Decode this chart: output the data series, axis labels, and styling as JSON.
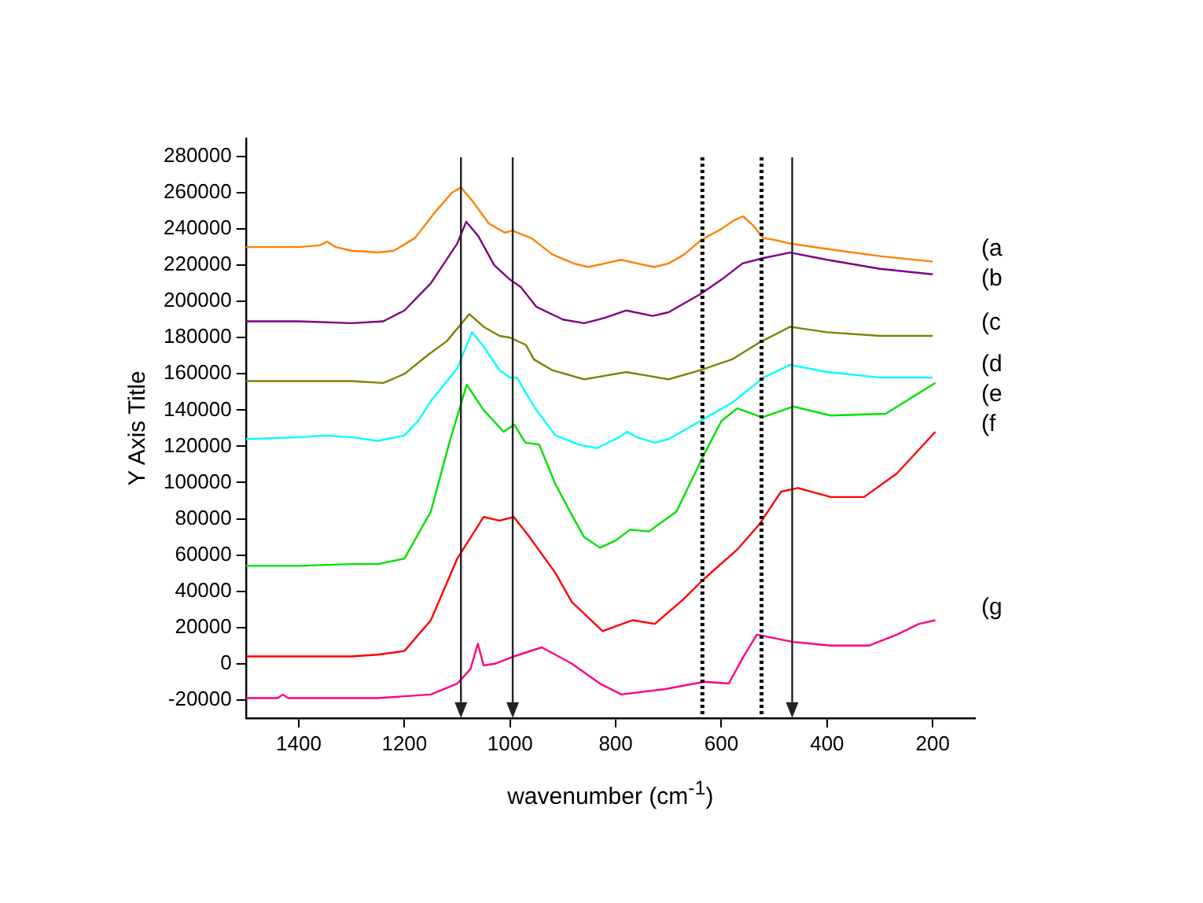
{
  "chart_data": {
    "type": "line",
    "xlabel": "wavenumber (cm$^{-1}$)",
    "ylabel": "Y Axis Title",
    "xlim": [
      1500,
      120
    ],
    "xticks": [
      1400,
      1200,
      1000,
      800,
      600,
      400,
      200
    ],
    "ylim": [
      -30000,
      290000
    ],
    "yticks": [
      -20000,
      0,
      20000,
      40000,
      60000,
      80000,
      100000,
      120000,
      140000,
      160000,
      180000,
      200000,
      220000,
      240000,
      260000,
      280000
    ],
    "grid": false,
    "legend": false,
    "marker": "none",
    "line_style": "solid",
    "series": [
      {
        "name": "(a",
        "color": "#ff8000",
        "x": [
          1500,
          1400,
          1360,
          1346,
          1330,
          1300,
          1250,
          1220,
          1180,
          1140,
          1110,
          1093,
          1070,
          1040,
          1010,
          995,
          960,
          920,
          880,
          852,
          820,
          790,
          760,
          727,
          700,
          670,
          638,
          600,
          575,
          559,
          540,
          521,
          500,
          470,
          400,
          300,
          200
        ],
        "values": [
          230000,
          230000,
          231000,
          233000,
          230000,
          228000,
          227000,
          228000,
          235000,
          250000,
          260000,
          263000,
          255000,
          243000,
          238000,
          239000,
          235000,
          226000,
          221000,
          219000,
          221000,
          223000,
          221000,
          219000,
          221000,
          226000,
          234000,
          240000,
          245000,
          247000,
          242000,
          235000,
          234000,
          232000,
          229000,
          225000,
          222000
        ]
      },
      {
        "name": "(b",
        "color": "#800080",
        "x": [
          1500,
          1400,
          1300,
          1240,
          1200,
          1150,
          1100,
          1083,
          1060,
          1030,
          1000,
          980,
          950,
          900,
          860,
          820,
          780,
          730,
          700,
          640,
          600,
          560,
          520,
          470,
          400,
          300,
          200
        ],
        "values": [
          189000,
          189000,
          188000,
          189000,
          195000,
          210000,
          232000,
          244000,
          236000,
          220000,
          212000,
          208000,
          197000,
          190000,
          188000,
          191000,
          195000,
          192000,
          194000,
          204000,
          212000,
          221000,
          224000,
          227000,
          223000,
          218000,
          215000
        ]
      },
      {
        "name": "(c",
        "color": "#808000",
        "x": [
          1500,
          1400,
          1300,
          1240,
          1200,
          1153,
          1120,
          1077,
          1050,
          1020,
          1000,
          970,
          955,
          920,
          860,
          820,
          780,
          740,
          700,
          640,
          580,
          530,
          470,
          400,
          300,
          200
        ],
        "values": [
          156000,
          156000,
          156000,
          155000,
          160000,
          171000,
          178000,
          193000,
          186000,
          181000,
          180000,
          176000,
          168000,
          162000,
          157000,
          159000,
          161000,
          159000,
          157000,
          162000,
          168000,
          177000,
          186000,
          183000,
          181000,
          181000
        ]
      },
      {
        "name": "(d",
        "color": "#00ffff",
        "x": [
          1500,
          1400,
          1350,
          1300,
          1250,
          1200,
          1174,
          1150,
          1100,
          1072,
          1050,
          1020,
          1000,
          987,
          955,
          914,
          870,
          836,
          800,
          778,
          760,
          726,
          700,
          640,
          580,
          520,
          470,
          400,
          300,
          200
        ],
        "values": [
          124000,
          125000,
          126000,
          125000,
          123000,
          126000,
          134000,
          145000,
          163000,
          183000,
          175000,
          162000,
          158000,
          158000,
          142000,
          126000,
          121000,
          119000,
          124000,
          128000,
          125000,
          122000,
          124000,
          134000,
          144000,
          158000,
          165000,
          161000,
          158000,
          158000
        ]
      },
      {
        "name": "(e",
        "color": "#00e000",
        "x": [
          1500,
          1400,
          1300,
          1250,
          1200,
          1150,
          1115,
          1082,
          1050,
          1012,
          992,
          971,
          945,
          914,
          883,
          860,
          830,
          800,
          773,
          737,
          685,
          632,
          600,
          570,
          523,
          464,
          393,
          289,
          195
        ],
        "values": [
          54000,
          54000,
          55000,
          55000,
          58000,
          84000,
          122000,
          154000,
          140000,
          128000,
          132000,
          122000,
          121000,
          99000,
          82000,
          70000,
          64000,
          68000,
          74000,
          73000,
          84000,
          116000,
          134000,
          141000,
          136000,
          142000,
          137000,
          138000,
          155000
        ]
      },
      {
        "name": "(f",
        "color": "#ff0000",
        "x": [
          1500,
          1400,
          1300,
          1250,
          1200,
          1150,
          1100,
          1050,
          1020,
          993,
          966,
          914,
          883,
          825,
          768,
          726,
          674,
          632,
          570,
          528,
          487,
          455,
          393,
          330,
          268,
          195
        ],
        "values": [
          4000,
          4000,
          4000,
          5000,
          7000,
          24000,
          58000,
          81000,
          79000,
          81000,
          71000,
          50000,
          34000,
          18000,
          24000,
          22000,
          35000,
          47000,
          63000,
          77000,
          95000,
          97000,
          92000,
          92000,
          105000,
          128000
        ]
      },
      {
        "name": "(g",
        "color": "#ff0080",
        "x": [
          1500,
          1440,
          1430,
          1420,
          1350,
          1250,
          1150,
          1100,
          1075,
          1061,
          1050,
          1028,
          993,
          940,
          883,
          830,
          789,
          706,
          632,
          586,
          560,
          533,
          464,
          393,
          320,
          268,
          226,
          195
        ],
        "values": [
          -19000,
          -19000,
          -17000,
          -19000,
          -19000,
          -19000,
          -17000,
          -11000,
          -3000,
          11000,
          -1000,
          0,
          4000,
          9000,
          0,
          -11000,
          -17000,
          -14000,
          -10000,
          -11000,
          3000,
          16000,
          12000,
          10000,
          10000,
          16000,
          22000,
          24000
        ]
      }
    ],
    "ref_lines": [
      {
        "axis": "x",
        "value": 1093,
        "color": "#222222",
        "line_style": "solid"
      },
      {
        "axis": "x",
        "value": 995,
        "color": "#222222",
        "line_style": "solid"
      },
      {
        "axis": "x",
        "value": 466,
        "color": "#222222",
        "line_style": "solid"
      },
      {
        "axis": "x",
        "value": 636,
        "color": "#000000",
        "line_style": "dotted"
      },
      {
        "axis": "x",
        "value": 524,
        "color": "#000000",
        "line_style": "dotted"
      }
    ]
  }
}
